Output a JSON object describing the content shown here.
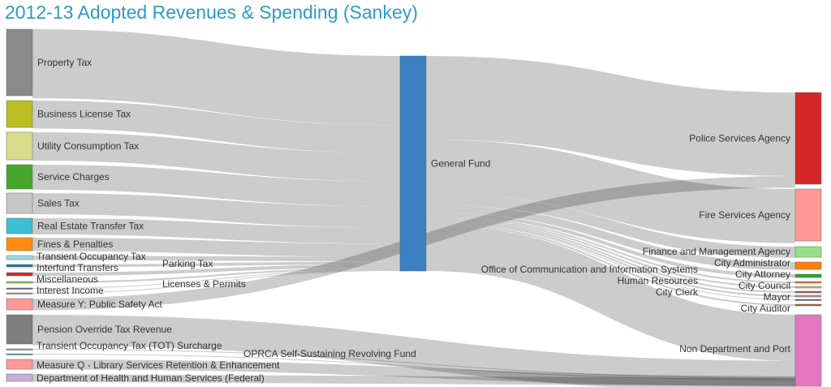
{
  "title": "2012-13 Adopted Revenues & Spending (Sankey)",
  "chart_data": {
    "type": "sankey",
    "title": "2012-13 Adopted Revenues & Spending (Sankey)",
    "units": "estimated $M (relative)",
    "nodes": [
      {
        "id": "property",
        "name": "Property Tax",
        "column": 0,
        "color": "#8a8a8a",
        "value": 124
      },
      {
        "id": "blt",
        "name": "Business License Tax",
        "column": 0,
        "color": "#bcbd22",
        "value": 50
      },
      {
        "id": "utility",
        "name": "Utility Consumption Tax",
        "column": 0,
        "color": "#dbdb8d",
        "value": 51
      },
      {
        "id": "service",
        "name": "Service Charges",
        "column": 0,
        "color": "#46a62a",
        "value": 45
      },
      {
        "id": "sales",
        "name": "Sales Tax",
        "column": 0,
        "color": "#c7c7c7",
        "value": 38
      },
      {
        "id": "rett",
        "name": "Real Estate Transfer Tax",
        "column": 0,
        "color": "#3bbfd3",
        "value": 29
      },
      {
        "id": "fines",
        "name": "Fines & Penalties",
        "column": 0,
        "color": "#ff8c0e",
        "value": 24
      },
      {
        "id": "tot",
        "name": "Transient Occupancy Tax",
        "column": 0,
        "color": "#9edae5",
        "value": 8
      },
      {
        "id": "parking",
        "name": "Parking Tax",
        "column": 0,
        "color": "#1f77b4",
        "value": 5
      },
      {
        "id": "interfund",
        "name": "Interfund Transfers",
        "column": 0,
        "color": "#d62728",
        "value": 6
      },
      {
        "id": "misc",
        "name": "Miscellaneous",
        "column": 0,
        "color": "#7fcf5a",
        "value": 3
      },
      {
        "id": "licenses",
        "name": "Licenses & Permits",
        "column": 0,
        "color": "#5a6a8a",
        "value": 1.5
      },
      {
        "id": "interest",
        "name": "Interest Income",
        "column": 0,
        "color": "#b09080",
        "value": 1.5
      },
      {
        "id": "measurey",
        "name": "Measure Y: Public Safety Act",
        "column": 0,
        "color": "#ff9896",
        "value": 21
      },
      {
        "id": "pension",
        "name": "Pension Override Tax Revenue",
        "column": 0,
        "color": "#7f7f7f",
        "value": 55
      },
      {
        "id": "totsur",
        "name": "Transient Occupancy Tax (TOT) Surcharge",
        "column": 0,
        "color": "#6aaab5",
        "value": 1.5
      },
      {
        "id": "oprca",
        "name": "OPRCA Self-Sustaining Revolving Fund",
        "column": 0,
        "color": "#6aaab5",
        "value": 1.5
      },
      {
        "id": "measureq",
        "name": "Measure Q - Library Services Retention & Enhancement",
        "column": 0,
        "color": "#ff9896",
        "value": 18
      },
      {
        "id": "hhs",
        "name": "Department of Health and Human Services (Federal)",
        "column": 0,
        "color": "#c5b0d5",
        "value": 14
      },
      {
        "id": "gf",
        "name": "General Fund",
        "column": 1,
        "color": "#3a80c2",
        "value": 386
      },
      {
        "id": "police",
        "name": "Police Services Agency",
        "column": 2,
        "color": "#d62728",
        "value": 171
      },
      {
        "id": "fire",
        "name": "Fire Services Agency",
        "column": 2,
        "color": "#ff9896",
        "value": 97
      },
      {
        "id": "finance",
        "name": "Finance and Management Agency",
        "column": 2,
        "color": "#98df8a",
        "value": 20
      },
      {
        "id": "admin",
        "name": "City Administrator",
        "column": 2,
        "color": "#ff7f0e",
        "value": 14
      },
      {
        "id": "ocis",
        "name": "Office of Communication and Information Systems",
        "column": 2,
        "color": "#2ca02c",
        "value": 6
      },
      {
        "id": "attorney",
        "name": "City Attorney",
        "column": 2,
        "color": "#e07040",
        "value": 3
      },
      {
        "id": "hr",
        "name": "Human Resources",
        "column": 2,
        "color": "#e0b070",
        "value": 3
      },
      {
        "id": "council",
        "name": "City Council",
        "column": 2,
        "color": "#a06060",
        "value": 3
      },
      {
        "id": "clerk",
        "name": "City Clerk",
        "column": 2,
        "color": "#b09090",
        "value": 3
      },
      {
        "id": "mayor",
        "name": "Mayor",
        "column": 2,
        "color": "#506080",
        "value": 1.5
      },
      {
        "id": "auditor",
        "name": "City Auditor",
        "column": 2,
        "color": "#a06030",
        "value": 3
      },
      {
        "id": "nondept",
        "name": "Non Department and Port",
        "column": 2,
        "color": "#e377c2",
        "value": 137
      }
    ],
    "links": [
      {
        "source": "property",
        "target": "gf",
        "value": 124
      },
      {
        "source": "blt",
        "target": "gf",
        "value": 50
      },
      {
        "source": "utility",
        "target": "gf",
        "value": 51
      },
      {
        "source": "service",
        "target": "gf",
        "value": 45
      },
      {
        "source": "sales",
        "target": "gf",
        "value": 38
      },
      {
        "source": "rett",
        "target": "gf",
        "value": 29
      },
      {
        "source": "fines",
        "target": "gf",
        "value": 24
      },
      {
        "source": "tot",
        "target": "gf",
        "value": 8
      },
      {
        "source": "parking",
        "target": "gf",
        "value": 5
      },
      {
        "source": "interfund",
        "target": "gf",
        "value": 6
      },
      {
        "source": "misc",
        "target": "gf",
        "value": 3
      },
      {
        "source": "licenses",
        "target": "gf",
        "value": 1.5
      },
      {
        "source": "interest",
        "target": "gf",
        "value": 1.5
      },
      {
        "source": "gf",
        "target": "police",
        "value": 150
      },
      {
        "source": "gf",
        "target": "fire",
        "value": 97
      },
      {
        "source": "gf",
        "target": "finance",
        "value": 20
      },
      {
        "source": "gf",
        "target": "admin",
        "value": 14
      },
      {
        "source": "gf",
        "target": "ocis",
        "value": 6
      },
      {
        "source": "gf",
        "target": "attorney",
        "value": 3
      },
      {
        "source": "gf",
        "target": "hr",
        "value": 3
      },
      {
        "source": "gf",
        "target": "council",
        "value": 3
      },
      {
        "source": "gf",
        "target": "clerk",
        "value": 3
      },
      {
        "source": "gf",
        "target": "mayor",
        "value": 1.5
      },
      {
        "source": "gf",
        "target": "auditor",
        "value": 3
      },
      {
        "source": "gf",
        "target": "nondept",
        "value": 82.5
      },
      {
        "source": "measurey",
        "target": "police",
        "value": 21
      },
      {
        "source": "pension",
        "target": "nondept",
        "value": 55
      },
      {
        "source": "totsur",
        "target": null,
        "value": 1.5
      },
      {
        "source": "oprca",
        "target": null,
        "value": 1.5
      },
      {
        "source": "measureq",
        "target": null,
        "value": 18
      },
      {
        "source": "hhs",
        "target": null,
        "value": 14
      }
    ]
  }
}
